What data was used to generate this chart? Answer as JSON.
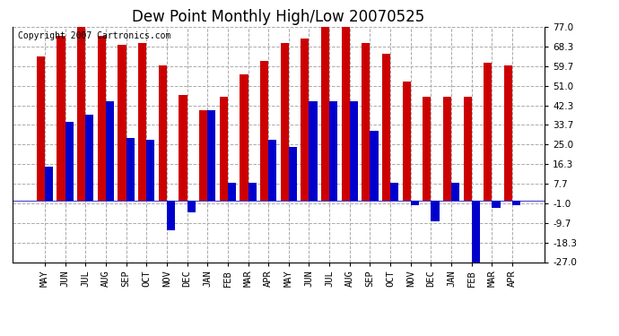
{
  "title": "Dew Point Monthly High/Low 20070525",
  "copyright": "Copyright 2007 Cartronics.com",
  "months": [
    "MAY",
    "JUN",
    "JUL",
    "AUG",
    "SEP",
    "OCT",
    "NOV",
    "DEC",
    "JAN",
    "FEB",
    "MAR",
    "APR",
    "MAY",
    "JUN",
    "JUL",
    "AUG",
    "SEP",
    "OCT",
    "NOV",
    "DEC",
    "JAN",
    "FEB",
    "MAR",
    "APR"
  ],
  "highs": [
    64,
    73,
    77,
    73,
    69,
    70,
    60,
    47,
    40,
    46,
    56,
    62,
    70,
    72,
    77,
    77,
    70,
    65,
    53,
    46,
    46,
    46,
    61,
    60
  ],
  "lows": [
    15,
    35,
    38,
    44,
    28,
    27,
    -13,
    -5,
    40,
    8,
    8,
    27,
    24,
    44,
    44,
    44,
    31,
    8,
    -2,
    -9,
    8,
    -27,
    -3,
    -2
  ],
  "high_color": "#cc0000",
  "low_color": "#0000cc",
  "background_color": "#ffffff",
  "grid_color": "#aaaaaa",
  "ylim": [
    -27,
    77
  ],
  "yticks": [
    -27.0,
    -18.3,
    -9.7,
    -1.0,
    7.7,
    16.3,
    25.0,
    33.7,
    42.3,
    51.0,
    59.7,
    68.3,
    77.0
  ],
  "title_fontsize": 12,
  "copyright_fontsize": 7,
  "tick_fontsize": 7.5
}
